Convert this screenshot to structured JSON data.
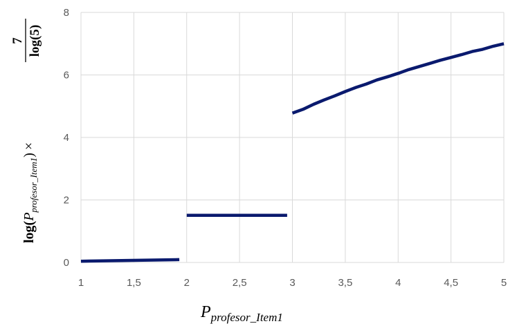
{
  "chart_data": {
    "type": "line",
    "xlim": [
      1,
      5
    ],
    "ylim": [
      0,
      8
    ],
    "grid": true,
    "legend": "none",
    "x_ticks": [
      "1",
      "1,5",
      "2",
      "2,5",
      "3",
      "3,5",
      "4",
      "4,5",
      "5"
    ],
    "x_tick_values": [
      1,
      1.5,
      2,
      2.5,
      3,
      3.5,
      4,
      4.5,
      5
    ],
    "y_ticks": [
      "0",
      "2",
      "4",
      "6",
      "8"
    ],
    "y_tick_values": [
      0,
      2,
      4,
      6,
      8
    ],
    "xlabel": {
      "main": "P",
      "sub": "profesor_Item1"
    },
    "ylabel": {
      "log_prefix": "log(",
      "var": "P",
      "var_sub": "profesor_Item1",
      "close": ")",
      "times": "×",
      "numerator": "7",
      "denominator": "log(5)"
    },
    "color": "#0a1a6e",
    "series": [
      {
        "x": [
          1.0,
          1.93
        ],
        "y": [
          0.04,
          0.09
        ]
      },
      {
        "x": [
          2.0,
          2.95
        ],
        "y": [
          1.51,
          1.51
        ]
      },
      {
        "x": [
          3.0,
          3.1,
          3.2,
          3.3,
          3.4,
          3.5,
          3.6,
          3.7,
          3.8,
          3.9,
          4.0,
          4.1,
          4.2,
          4.3,
          4.4,
          4.5,
          4.6,
          4.7,
          4.8,
          4.9,
          5.0
        ],
        "y": [
          4.78,
          4.9,
          5.06,
          5.2,
          5.33,
          5.47,
          5.6,
          5.71,
          5.84,
          5.94,
          6.05,
          6.17,
          6.27,
          6.37,
          6.47,
          6.56,
          6.65,
          6.75,
          6.82,
          6.92,
          7.0
        ]
      }
    ]
  }
}
